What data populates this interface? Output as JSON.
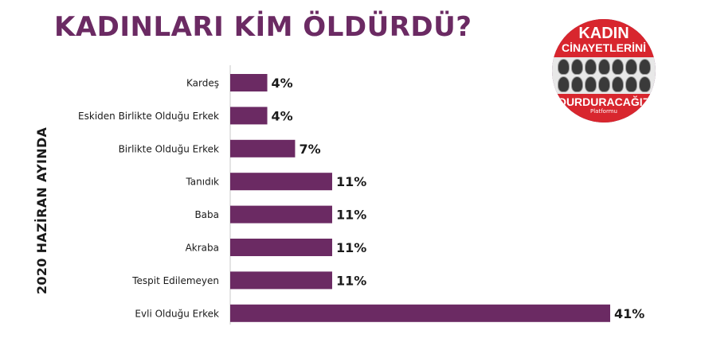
{
  "colors": {
    "bar": "#6b2a63",
    "title": "#6b2a63",
    "text": "#1a1a1a"
  },
  "chart_data": {
    "type": "bar",
    "orientation": "horizontal",
    "title": "KADINLARI KİM ÖLDÜRDÜ?",
    "side_label": "2020 HAZİRAN AYINDA",
    "categories": [
      "Kardeş",
      "Eskiden Birlikte Olduğu Erkek",
      "Birlikte Olduğu Erkek",
      "Tanıdık",
      "Baba",
      "Akraba",
      "Tespit Edilemeyen",
      "Evli Olduğu Erkek"
    ],
    "values": [
      4,
      4,
      7,
      11,
      11,
      11,
      11,
      41
    ],
    "value_labels": [
      "4%",
      "4%",
      "7%",
      "11%",
      "11%",
      "11%",
      "11%",
      "41%"
    ],
    "unit": "%",
    "xlim": [
      0,
      41
    ],
    "grid": false,
    "legend": "none"
  },
  "logo": {
    "line1": "KADIN",
    "line2": "CİNAYETLERİNİ",
    "line3": "DURDURACAĞIZ",
    "line4": "Platformu"
  }
}
